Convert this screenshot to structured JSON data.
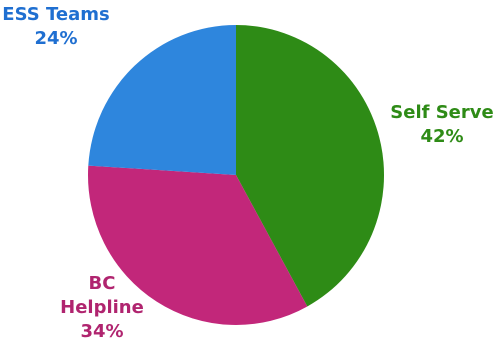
{
  "chart_data": {
    "type": "pie",
    "title": "",
    "slices": [
      {
        "label_lines": [
          "Self Serve"
        ],
        "value": 42,
        "value_label": "42%",
        "color": "#2e8b16"
      },
      {
        "label_lines": [
          "BC",
          "Helpline"
        ],
        "value": 34,
        "value_label": "34%",
        "color": "#c2277a"
      },
      {
        "label_lines": [
          "ESS Teams"
        ],
        "value": 24,
        "value_label": "24%",
        "color": "#2e86dd"
      }
    ],
    "start": "top, clockwise",
    "legend": "none",
    "label_colors": {
      "Self Serve": "#2e8b16",
      "BC Helpline": "#b0246f",
      "ESS Teams": "#1f6fd1"
    }
  }
}
